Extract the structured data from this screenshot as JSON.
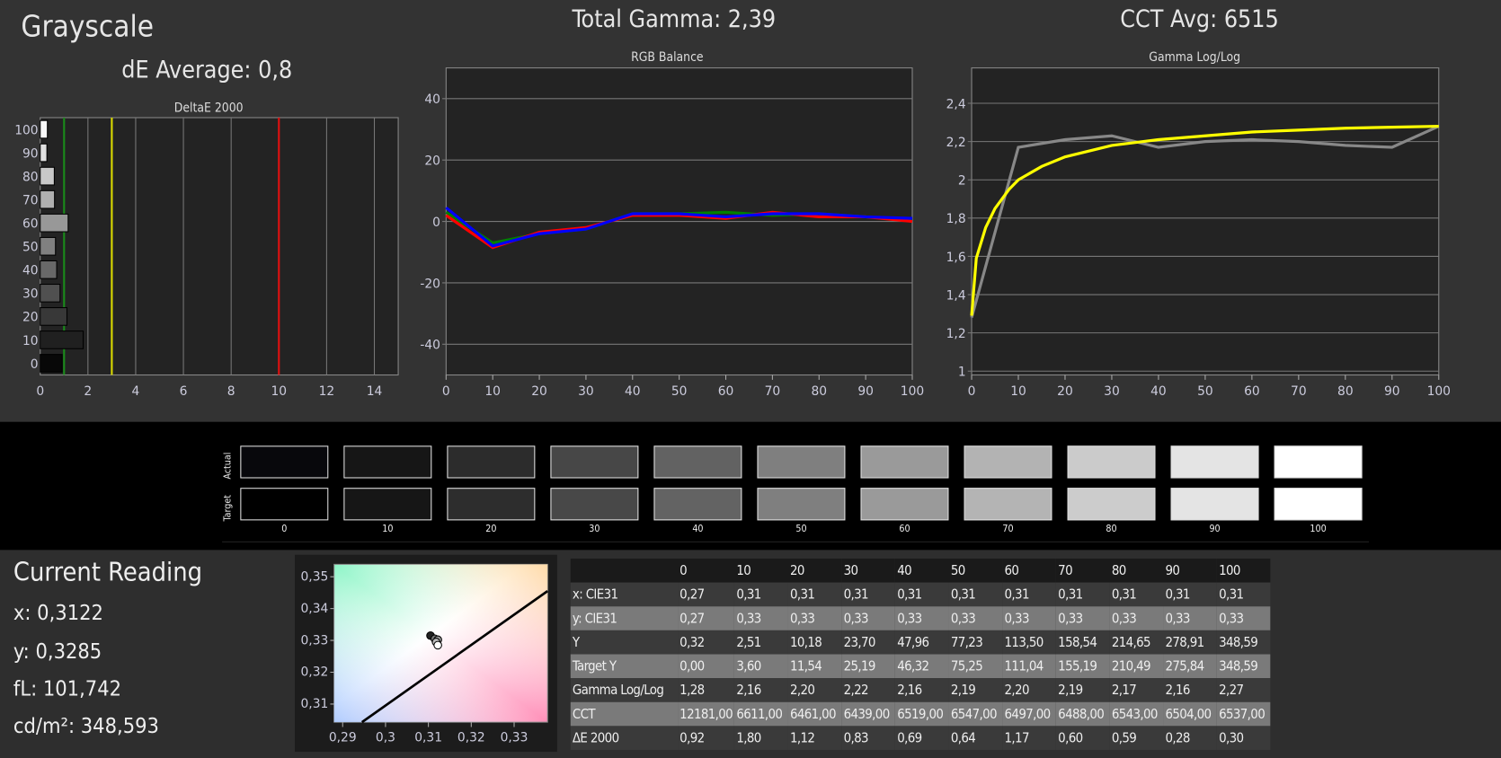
{
  "header": {
    "title": "Grayscale",
    "de_average": "dE Average: 0,8",
    "total_gamma": "Total Gamma: 2,39",
    "cct_avg": "CCT Avg: 6515"
  },
  "chart_data": [
    {
      "type": "bar",
      "title": "DeltaE 2000",
      "orientation": "horizontal",
      "categories": [
        "0",
        "10",
        "20",
        "30",
        "40",
        "50",
        "60",
        "70",
        "80",
        "90",
        "100"
      ],
      "values": [
        0.92,
        1.8,
        1.12,
        0.83,
        0.69,
        0.64,
        1.17,
        0.6,
        0.59,
        0.28,
        0.3
      ],
      "xlim": [
        0,
        15
      ],
      "xticks": [
        "0",
        "2",
        "4",
        "6",
        "8",
        "10",
        "12",
        "14"
      ],
      "reference_lines": [
        {
          "value": 1,
          "color": "#1a8a1a"
        },
        {
          "value": 3,
          "color": "#d8d800"
        },
        {
          "value": 10,
          "color": "#e01010"
        }
      ],
      "grid": true
    },
    {
      "type": "line",
      "title": "RGB Balance",
      "x": [
        0,
        10,
        20,
        30,
        40,
        50,
        60,
        70,
        80,
        90,
        100
      ],
      "xlim": [
        0,
        100
      ],
      "ylim": [
        -50,
        50
      ],
      "xticks": [
        "0",
        "10",
        "20",
        "30",
        "40",
        "50",
        "60",
        "70",
        "80",
        "90",
        "100"
      ],
      "yticks": [
        "40",
        "20",
        "0",
        "-20",
        "-40"
      ],
      "grid": true,
      "series": [
        {
          "color": "#008000",
          "values": [
            3,
            -7,
            -4,
            -2.5,
            2.5,
            2.5,
            3,
            2,
            2.5,
            1.5,
            0.5
          ]
        },
        {
          "color": "#ff0000",
          "values": [
            2,
            -8.5,
            -3.5,
            -2,
            2,
            2,
            1,
            3,
            1.5,
            1.5,
            0
          ]
        },
        {
          "color": "#0000ff",
          "values": [
            4.5,
            -8,
            -4,
            -2.5,
            2.5,
            2.5,
            1.5,
            2.5,
            2.5,
            1.5,
            1
          ]
        }
      ]
    },
    {
      "type": "line",
      "title": "Gamma Log/Log",
      "xlim": [
        0,
        100
      ],
      "ylim": [
        0.98,
        2.585
      ],
      "xticks": [
        "0",
        "10",
        "20",
        "30",
        "40",
        "50",
        "60",
        "70",
        "80",
        "90",
        "100"
      ],
      "yticks": [
        "2,4",
        "2,2",
        "2",
        "1,8",
        "1,6",
        "1,4",
        "1,2",
        "1"
      ],
      "grid": true,
      "series": [
        {
          "color": "#888888",
          "x": [
            0,
            10,
            20,
            30,
            40,
            50,
            60,
            70,
            80,
            90,
            100
          ],
          "values": [
            1.28,
            2.17,
            2.21,
            2.23,
            2.17,
            2.2,
            2.21,
            2.2,
            2.18,
            2.17,
            2.28
          ]
        },
        {
          "color": "#ffff00",
          "x": [
            0,
            1,
            3,
            5,
            8,
            10,
            15,
            20,
            30,
            40,
            50,
            60,
            70,
            80,
            90,
            100
          ],
          "values": [
            1.29,
            1.59,
            1.75,
            1.85,
            1.95,
            2.0,
            2.07,
            2.12,
            2.18,
            2.21,
            2.23,
            2.25,
            2.26,
            2.27,
            2.275,
            2.28
          ]
        }
      ]
    },
    {
      "type": "scatter",
      "xlim": [
        0.288,
        0.3378
      ],
      "ylim": [
        0.3043,
        0.3539
      ],
      "xticks": [
        "0,29",
        "0,3",
        "0,31",
        "0,32",
        "0,33"
      ],
      "yticks": [
        "0,35",
        "0,34",
        "0,33",
        "0,32",
        "0,31"
      ],
      "points": [
        {
          "x": 0.3105,
          "y": 0.3315,
          "color": "#222222"
        },
        {
          "x": 0.3115,
          "y": 0.3305,
          "color": "#777777"
        },
        {
          "x": 0.3122,
          "y": 0.3302,
          "color": "#999999"
        },
        {
          "x": 0.3118,
          "y": 0.3295,
          "color": "#bbbbbb"
        },
        {
          "x": 0.3122,
          "y": 0.3285,
          "color": "#ffffff"
        }
      ],
      "blackbody": [
        [
          0.2945,
          0.3043
        ],
        [
          0.3378,
          0.3455
        ]
      ]
    }
  ],
  "swatches": {
    "actual_label": "Actual",
    "target_label": "Target",
    "labels": [
      "0",
      "10",
      "20",
      "30",
      "40",
      "50",
      "60",
      "70",
      "80",
      "90",
      "100"
    ],
    "actual": [
      "#08080c",
      "#161616",
      "#2c2c2c",
      "#474747",
      "#626262",
      "#7f7f7f",
      "#9a9a9a",
      "#b3b3b3",
      "#cbcbcb",
      "#e4e4e4",
      "#ffffff"
    ],
    "target": [
      "#000000",
      "#161616",
      "#2d2d2d",
      "#484848",
      "#636363",
      "#7f7f7f",
      "#9a9a9a",
      "#b4b4b4",
      "#cccccc",
      "#e4e4e4",
      "#ffffff"
    ]
  },
  "current_reading": {
    "title": "Current Reading",
    "x": "x: 0,3122",
    "y": "y: 0,3285",
    "fl": "fL: 101,742",
    "cdm2": "cd/m²: 348,593"
  },
  "table": {
    "columns": [
      "0",
      "10",
      "20",
      "30",
      "40",
      "50",
      "60",
      "70",
      "80",
      "90",
      "100"
    ],
    "rows": [
      {
        "label": "x: CIE31",
        "values": [
          "0,27",
          "0,31",
          "0,31",
          "0,31",
          "0,31",
          "0,31",
          "0,31",
          "0,31",
          "0,31",
          "0,31",
          "0,31"
        ]
      },
      {
        "label": "y: CIE31",
        "values": [
          "0,27",
          "0,33",
          "0,33",
          "0,33",
          "0,33",
          "0,33",
          "0,33",
          "0,33",
          "0,33",
          "0,33",
          "0,33"
        ]
      },
      {
        "label": "Y",
        "values": [
          "0,32",
          "2,51",
          "10,18",
          "23,70",
          "47,96",
          "77,23",
          "113,50",
          "158,54",
          "214,65",
          "278,91",
          "348,59"
        ]
      },
      {
        "label": "Target Y",
        "values": [
          "0,00",
          "3,60",
          "11,54",
          "25,19",
          "46,32",
          "75,25",
          "111,04",
          "155,19",
          "210,49",
          "275,84",
          "348,59"
        ]
      },
      {
        "label": "Gamma Log/Log",
        "values": [
          "1,28",
          "2,16",
          "2,20",
          "2,22",
          "2,16",
          "2,19",
          "2,20",
          "2,19",
          "2,17",
          "2,16",
          "2,27"
        ]
      },
      {
        "label": "CCT",
        "values": [
          "12181,00",
          "6611,00",
          "6461,00",
          "6439,00",
          "6519,00",
          "6547,00",
          "6497,00",
          "6488,00",
          "6543,00",
          "6504,00",
          "6537,00"
        ]
      },
      {
        "label": "ΔE 2000",
        "values": [
          "0,92",
          "1,80",
          "1,12",
          "0,83",
          "0,69",
          "0,64",
          "1,17",
          "0,60",
          "0,59",
          "0,28",
          "0,30"
        ]
      }
    ]
  }
}
